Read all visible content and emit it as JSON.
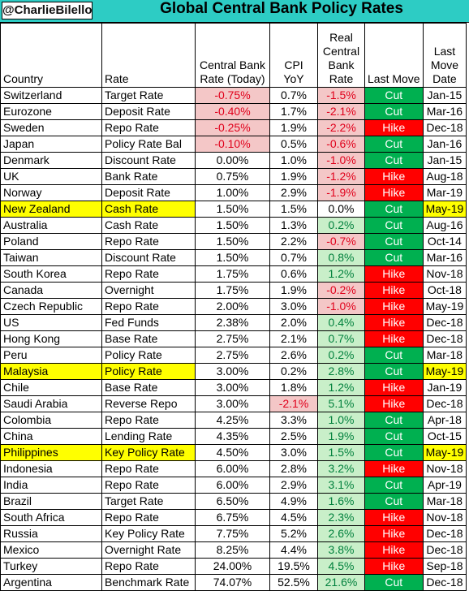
{
  "header": {
    "author": "@CharlieBilello",
    "title": "Global Central Bank Policy Rates"
  },
  "columns": {
    "country": "Country",
    "rate": "Rate",
    "cb_rate": "Central Bank Rate (Today)",
    "cpi": "CPI YoY",
    "real": "Real Central Bank Rate",
    "last_move": "Last Move",
    "last_move_date": "Last Move Date"
  },
  "colors": {
    "header_bar": "#2dccc4",
    "highlight": "#ffff00",
    "cut": "#00b050",
    "hike": "#ff0000",
    "negative_bg": "#f4c7c7",
    "positive_bg": "#c9efc9"
  },
  "rows": [
    {
      "country": "Switzerland",
      "rate": "Target Rate",
      "cb_rate": "-0.75%",
      "cpi": "0.7%",
      "real": "-1.5%",
      "move": "Cut",
      "date": "Jan-15"
    },
    {
      "country": "Eurozone",
      "rate": "Deposit Rate",
      "cb_rate": "-0.40%",
      "cpi": "1.7%",
      "real": "-2.1%",
      "move": "Cut",
      "date": "Mar-16"
    },
    {
      "country": "Sweden",
      "rate": "Repo Rate",
      "cb_rate": "-0.25%",
      "cpi": "1.9%",
      "real": "-2.2%",
      "move": "Hike",
      "date": "Dec-18"
    },
    {
      "country": "Japan",
      "rate": "Policy Rate Bal",
      "cb_rate": "-0.10%",
      "cpi": "0.5%",
      "real": "-0.6%",
      "move": "Cut",
      "date": "Jan-16"
    },
    {
      "country": "Denmark",
      "rate": "Discount Rate",
      "cb_rate": "0.00%",
      "cpi": "1.0%",
      "real": "-1.0%",
      "move": "Cut",
      "date": "Jan-15"
    },
    {
      "country": "UK",
      "rate": "Bank Rate",
      "cb_rate": "0.75%",
      "cpi": "1.9%",
      "real": "-1.2%",
      "move": "Hike",
      "date": "Aug-18"
    },
    {
      "country": "Norway",
      "rate": "Deposit Rate",
      "cb_rate": "1.00%",
      "cpi": "2.9%",
      "real": "-1.9%",
      "move": "Hike",
      "date": "Mar-19"
    },
    {
      "country": "New Zealand",
      "rate": "Cash Rate",
      "cb_rate": "1.50%",
      "cpi": "1.5%",
      "real": "0.0%",
      "move": "Cut",
      "date": "May-19",
      "hl": true
    },
    {
      "country": "Australia",
      "rate": "Cash Rate",
      "cb_rate": "1.50%",
      "cpi": "1.3%",
      "real": "0.2%",
      "move": "Cut",
      "date": "Aug-16"
    },
    {
      "country": "Poland",
      "rate": "Repo Rate",
      "cb_rate": "1.50%",
      "cpi": "2.2%",
      "real": "-0.7%",
      "move": "Cut",
      "date": "Oct-14"
    },
    {
      "country": "Taiwan",
      "rate": "Discount Rate",
      "cb_rate": "1.50%",
      "cpi": "0.7%",
      "real": "0.8%",
      "move": "Cut",
      "date": "Mar-16"
    },
    {
      "country": "South Korea",
      "rate": "Repo Rate",
      "cb_rate": "1.75%",
      "cpi": "0.6%",
      "real": "1.2%",
      "move": "Hike",
      "date": "Nov-18"
    },
    {
      "country": "Canada",
      "rate": "Overnight",
      "cb_rate": "1.75%",
      "cpi": "1.9%",
      "real": "-0.2%",
      "move": "Hike",
      "date": "Oct-18"
    },
    {
      "country": "Czech Republic",
      "rate": "Repo Rate",
      "cb_rate": "2.00%",
      "cpi": "3.0%",
      "real": "-1.0%",
      "move": "Hike",
      "date": "May-19"
    },
    {
      "country": "US",
      "rate": "Fed Funds",
      "cb_rate": "2.38%",
      "cpi": "2.0%",
      "real": "0.4%",
      "move": "Hike",
      "date": "Dec-18"
    },
    {
      "country": "Hong Kong",
      "rate": "Base Rate",
      "cb_rate": "2.75%",
      "cpi": "2.1%",
      "real": "0.7%",
      "move": "Hike",
      "date": "Dec-18"
    },
    {
      "country": "Peru",
      "rate": "Policy Rate",
      "cb_rate": "2.75%",
      "cpi": "2.6%",
      "real": "0.2%",
      "move": "Cut",
      "date": "Mar-18"
    },
    {
      "country": "Malaysia",
      "rate": "Policy Rate",
      "cb_rate": "3.00%",
      "cpi": "0.2%",
      "real": "2.8%",
      "move": "Cut",
      "date": "May-19",
      "hl": true
    },
    {
      "country": "Chile",
      "rate": "Base Rate",
      "cb_rate": "3.00%",
      "cpi": "1.8%",
      "real": "1.2%",
      "move": "Hike",
      "date": "Jan-19"
    },
    {
      "country": "Saudi Arabia",
      "rate": "Reverse Repo",
      "cb_rate": "3.00%",
      "cpi": "-2.1%",
      "real": "5.1%",
      "move": "Hike",
      "date": "Dec-18"
    },
    {
      "country": "Colombia",
      "rate": "Repo Rate",
      "cb_rate": "4.25%",
      "cpi": "3.3%",
      "real": "1.0%",
      "move": "Cut",
      "date": "Apr-18"
    },
    {
      "country": "China",
      "rate": "Lending Rate",
      "cb_rate": "4.35%",
      "cpi": "2.5%",
      "real": "1.9%",
      "move": "Cut",
      "date": "Oct-15"
    },
    {
      "country": "Philippines",
      "rate": "Key Policy Rate",
      "cb_rate": "4.50%",
      "cpi": "3.0%",
      "real": "1.5%",
      "move": "Cut",
      "date": "May-19",
      "hl": true
    },
    {
      "country": "Indonesia",
      "rate": "Repo Rate",
      "cb_rate": "6.00%",
      "cpi": "2.8%",
      "real": "3.2%",
      "move": "Hike",
      "date": "Nov-18"
    },
    {
      "country": "India",
      "rate": "Repo Rate",
      "cb_rate": "6.00%",
      "cpi": "2.9%",
      "real": "3.1%",
      "move": "Cut",
      "date": "Apr-19"
    },
    {
      "country": "Brazil",
      "rate": "Target Rate",
      "cb_rate": "6.50%",
      "cpi": "4.9%",
      "real": "1.6%",
      "move": "Cut",
      "date": "Mar-18"
    },
    {
      "country": "South Africa",
      "rate": "Repo Rate",
      "cb_rate": "6.75%",
      "cpi": "4.5%",
      "real": "2.3%",
      "move": "Hike",
      "date": "Nov-18"
    },
    {
      "country": "Russia",
      "rate": "Key Policy Rate",
      "cb_rate": "7.75%",
      "cpi": "5.2%",
      "real": "2.6%",
      "move": "Hike",
      "date": "Dec-18"
    },
    {
      "country": "Mexico",
      "rate": "Overnight Rate",
      "cb_rate": "8.25%",
      "cpi": "4.4%",
      "real": "3.8%",
      "move": "Hike",
      "date": "Dec-18"
    },
    {
      "country": "Turkey",
      "rate": "Repo Rate",
      "cb_rate": "24.00%",
      "cpi": "19.5%",
      "real": "4.5%",
      "move": "Hike",
      "date": "Sep-18"
    },
    {
      "country": "Argentina",
      "rate": "Benchmark Rate",
      "cb_rate": "74.07%",
      "cpi": "52.5%",
      "real": "21.6%",
      "move": "Cut",
      "date": "Dec-18"
    }
  ]
}
